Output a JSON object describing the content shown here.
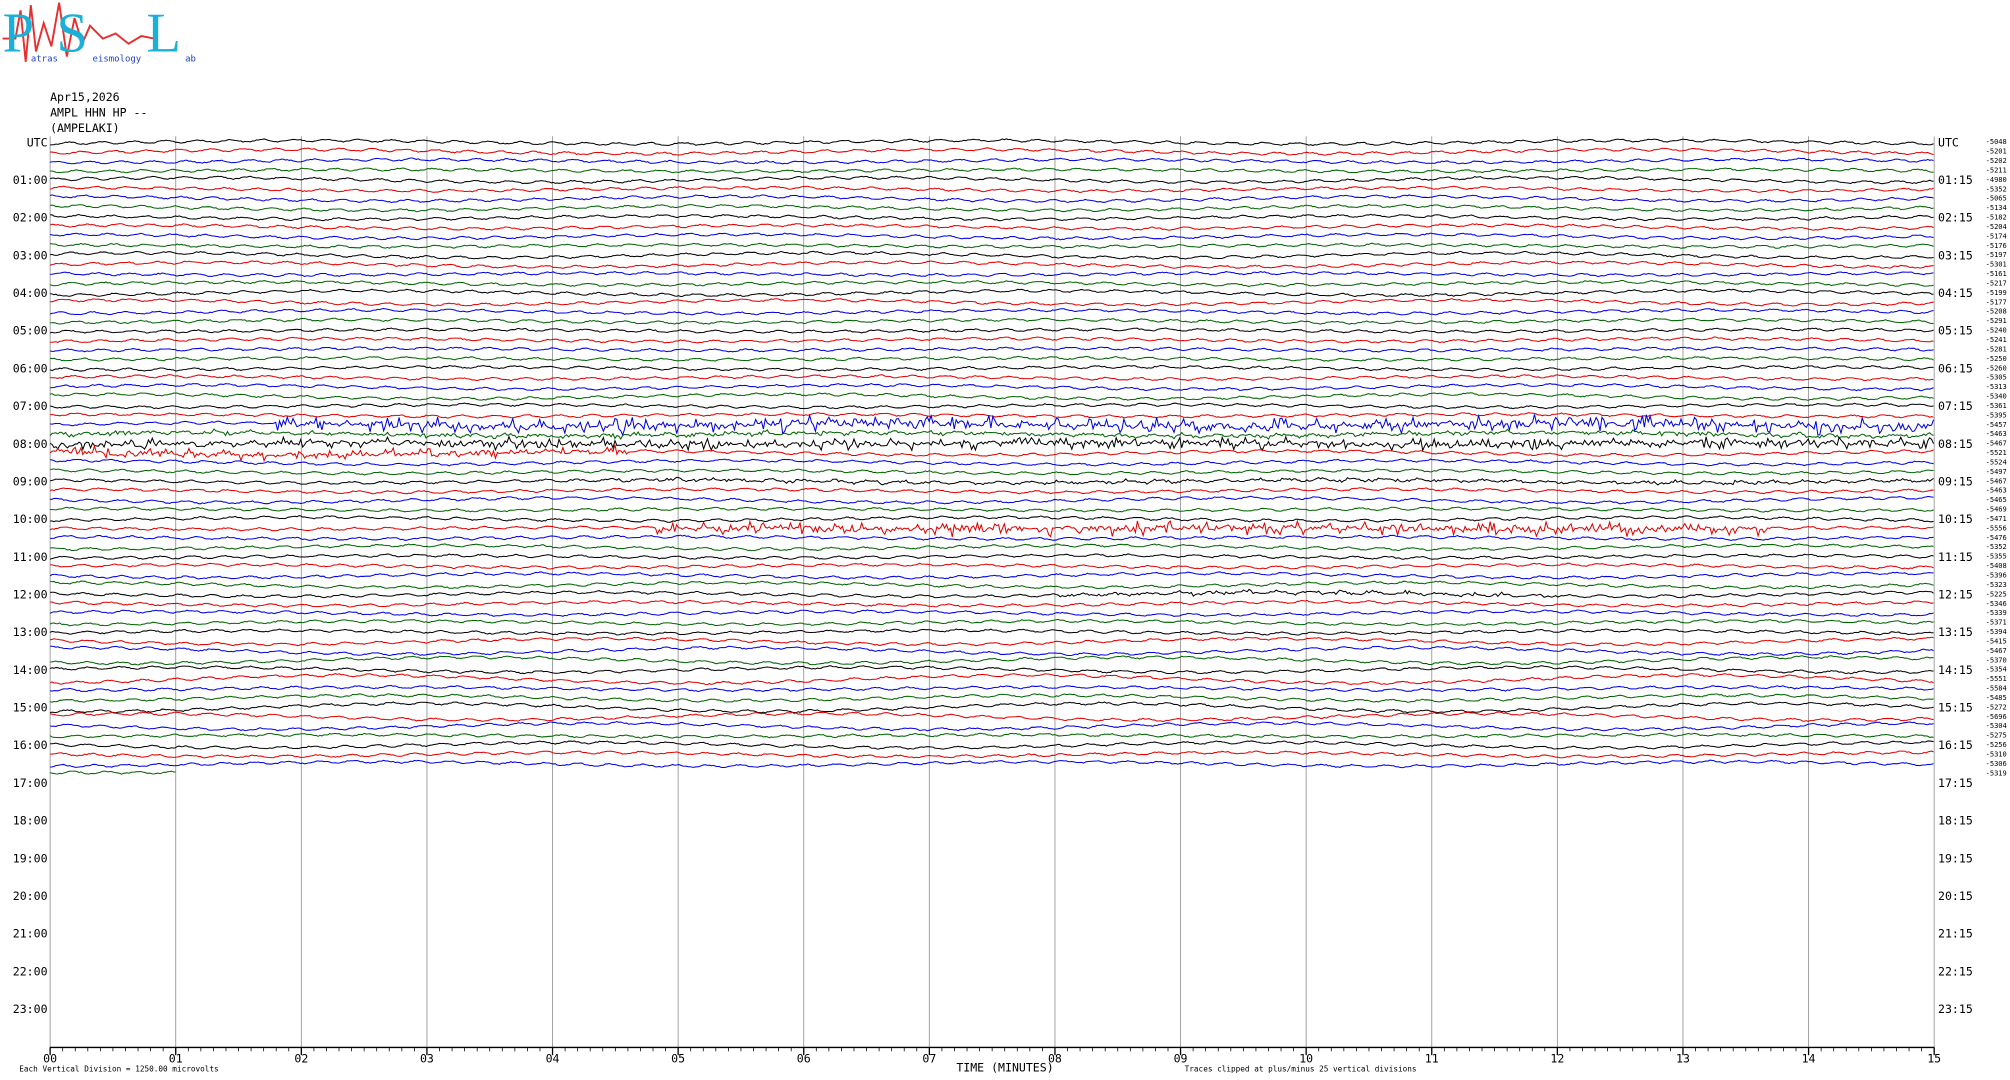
{
  "logo": {
    "letters": [
      "P",
      "S",
      "L"
    ],
    "words": [
      "atras",
      "eismology",
      "ab"
    ]
  },
  "header": {
    "date": "Apr15,2026",
    "station": "AMPL HHN HP --",
    "site": "(AMPELAKI)"
  },
  "left_labels": [
    "UTC",
    "01:00",
    "02:00",
    "03:00",
    "04:00",
    "05:00",
    "06:00",
    "07:00",
    "08:00",
    "09:00",
    "10:00",
    "11:00",
    "12:00",
    "13:00",
    "14:00",
    "15:00",
    "16:00",
    "17:00",
    "18:00",
    "19:00",
    "20:00",
    "21:00",
    "22:00",
    "23:00"
  ],
  "right_labels": [
    "UTC",
    "01:15",
    "02:15",
    "03:15",
    "04:15",
    "05:15",
    "06:15",
    "07:15",
    "08:15",
    "09:15",
    "10:15",
    "11:15",
    "12:15",
    "13:15",
    "14:15",
    "15:15",
    "16:15",
    "17:15",
    "18:15",
    "19:15",
    "20:15",
    "21:15",
    "22:15",
    "23:15"
  ],
  "trace_offsets": [
    -5048,
    -5201,
    -5202,
    -5211,
    -4980,
    -5352,
    -5065,
    -5134,
    -5182,
    -5204,
    -5174,
    -5176,
    -5197,
    -5301,
    -5161,
    -5217,
    -5199,
    -5177,
    -5208,
    -5291,
    -5240,
    -5241,
    -5281,
    -5250,
    -5260,
    -5305,
    -5313,
    -5340,
    -5361,
    -5395,
    -5457,
    -5463,
    -5467,
    -5521,
    -5524,
    -5497,
    -5467,
    -5463,
    -5465,
    -5469,
    -5471,
    -5556,
    -5476,
    -5352,
    -5355,
    -5408,
    -5396,
    -5323,
    -5225,
    -5346,
    -5339,
    -5371,
    -5394,
    -5415,
    -5467,
    -5370,
    -5354,
    -5551,
    -5584,
    -5485,
    -5272,
    -5696,
    -5304,
    -5275,
    -5256,
    -5310,
    -5306,
    -5319
  ],
  "x_axis": {
    "title": "TIME (MINUTES)",
    "ticks": [
      {
        "value": 0,
        "label": "00"
      },
      {
        "value": 1,
        "label": "01"
      },
      {
        "value": 2,
        "label": "02"
      },
      {
        "value": 3,
        "label": "03"
      },
      {
        "value": 4,
        "label": "04"
      },
      {
        "value": 5,
        "label": "05"
      },
      {
        "value": 6,
        "label": "06"
      },
      {
        "value": 7,
        "label": "07"
      },
      {
        "value": 8,
        "label": "08"
      },
      {
        "value": 9,
        "label": "09"
      },
      {
        "value": 10,
        "label": "10"
      },
      {
        "value": 11,
        "label": "11"
      },
      {
        "value": 12,
        "label": "12"
      },
      {
        "value": 13,
        "label": "13"
      },
      {
        "value": 14,
        "label": "14"
      },
      {
        "value": 15,
        "label": "15"
      }
    ]
  },
  "footer": {
    "scale": "Each Vertical Division = 1250.00 microvolts",
    "clip": "Traces clipped at plus/minus 25 vertical divisions"
  }
}
